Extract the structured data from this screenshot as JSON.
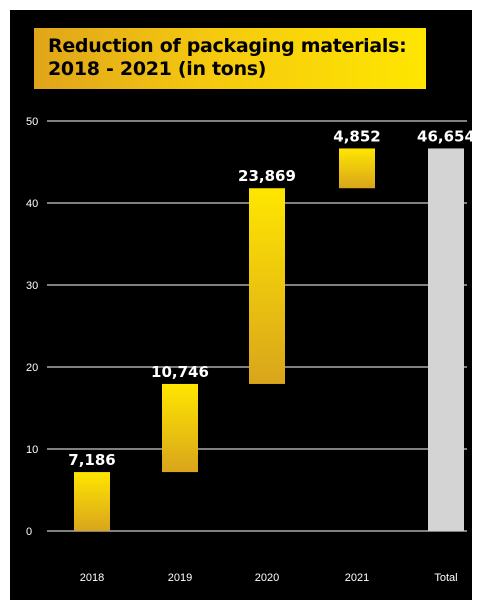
{
  "chart_data": {
    "type": "waterfall",
    "title": "Reduction of packaging materials: 2018 - 2021 (in tons)",
    "categories": [
      "2018",
      "2019",
      "2020",
      "2021",
      "Total"
    ],
    "values": [
      7186,
      10746,
      23869,
      4852,
      46654
    ],
    "data_labels": [
      "7,186",
      "10,746",
      "23,869",
      "4,852",
      "46,654"
    ],
    "total_category": "Total",
    "y_ticks": [
      "0",
      "10",
      "20",
      "30",
      "40",
      "50"
    ],
    "ylim": [
      0,
      50
    ],
    "y_tick_scale": 1000,
    "grid": true,
    "legend": "none",
    "colors": {
      "background": "#000000",
      "bar_top": "#ffe600",
      "bar_bottom": "#d9a51c",
      "total_bar": "#d4d4d4",
      "grid": "#ffffff",
      "text": "#ffffff"
    }
  }
}
